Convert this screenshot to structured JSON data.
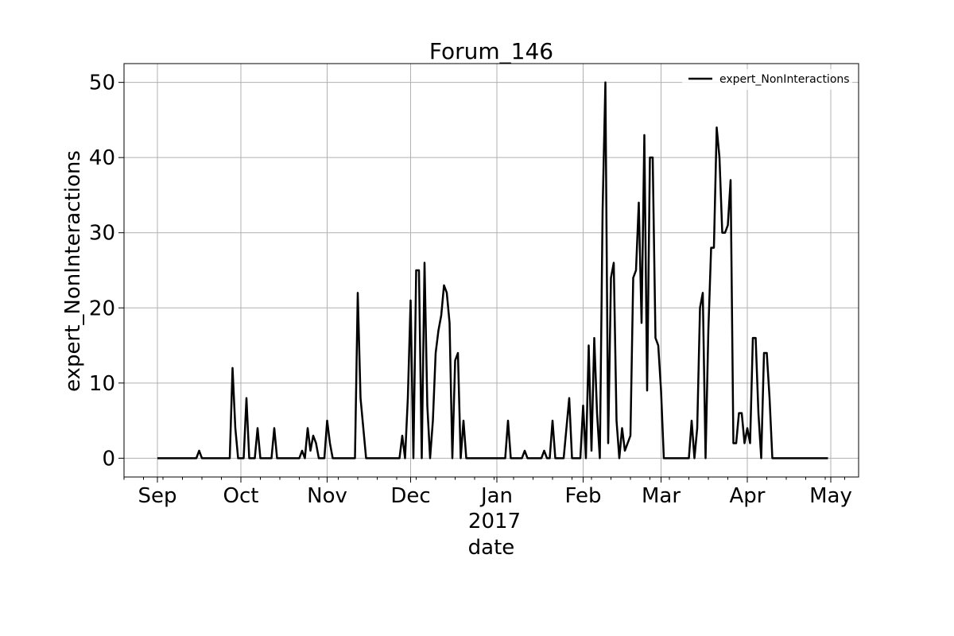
{
  "chart_data": {
    "type": "line",
    "title": "Forum_146",
    "xlabel": "date",
    "ylabel": "expert_NonInteractions",
    "x_tick_labels": [
      "Sep",
      "Oct",
      "Nov",
      "Dec",
      "Jan",
      "Feb",
      "Mar",
      "Apr",
      "May"
    ],
    "x_tick_dates": [
      "2016-09-01",
      "2016-10-01",
      "2016-11-01",
      "2016-12-01",
      "2017-01-01",
      "2017-02-01",
      "2017-03-01",
      "2017-04-01",
      "2017-05-01"
    ],
    "x_year_label": "2017",
    "xlim": [
      "2016-08-20",
      "2017-05-11"
    ],
    "y_ticks": [
      0,
      10,
      20,
      30,
      40,
      50
    ],
    "ylim": [
      -2.5,
      52.5
    ],
    "grid": true,
    "legend_position": "top-right",
    "series": [
      {
        "name": "expert_NonInteractions",
        "color": "#000000",
        "points": [
          [
            "2016-09-01",
            0
          ],
          [
            "2016-09-15",
            0
          ],
          [
            "2016-09-16",
            1
          ],
          [
            "2016-09-17",
            0
          ],
          [
            "2016-09-27",
            0
          ],
          [
            "2016-09-28",
            12
          ],
          [
            "2016-09-29",
            4
          ],
          [
            "2016-09-30",
            0
          ],
          [
            "2016-10-02",
            0
          ],
          [
            "2016-10-03",
            8
          ],
          [
            "2016-10-04",
            0
          ],
          [
            "2016-10-06",
            0
          ],
          [
            "2016-10-07",
            4
          ],
          [
            "2016-10-08",
            0
          ],
          [
            "2016-10-12",
            0
          ],
          [
            "2016-10-13",
            4
          ],
          [
            "2016-10-14",
            0
          ],
          [
            "2016-10-22",
            0
          ],
          [
            "2016-10-23",
            1
          ],
          [
            "2016-10-24",
            0
          ],
          [
            "2016-10-25",
            4
          ],
          [
            "2016-10-26",
            1
          ],
          [
            "2016-10-27",
            3
          ],
          [
            "2016-10-28",
            2
          ],
          [
            "2016-10-29",
            0
          ],
          [
            "2016-10-31",
            0
          ],
          [
            "2016-11-01",
            5
          ],
          [
            "2016-11-02",
            2
          ],
          [
            "2016-11-03",
            0
          ],
          [
            "2016-11-11",
            0
          ],
          [
            "2016-11-12",
            22
          ],
          [
            "2016-11-13",
            8
          ],
          [
            "2016-11-15",
            0
          ],
          [
            "2016-11-27",
            0
          ],
          [
            "2016-11-28",
            3
          ],
          [
            "2016-11-29",
            0
          ],
          [
            "2016-11-30",
            8
          ],
          [
            "2016-12-01",
            21
          ],
          [
            "2016-12-02",
            0
          ],
          [
            "2016-12-03",
            25
          ],
          [
            "2016-12-04",
            25
          ],
          [
            "2016-12-05",
            0
          ],
          [
            "2016-12-06",
            26
          ],
          [
            "2016-12-07",
            7
          ],
          [
            "2016-12-08",
            0
          ],
          [
            "2016-12-09",
            5
          ],
          [
            "2016-12-10",
            14
          ],
          [
            "2016-12-11",
            17
          ],
          [
            "2016-12-12",
            19
          ],
          [
            "2016-12-13",
            23
          ],
          [
            "2016-12-14",
            22
          ],
          [
            "2016-12-15",
            18
          ],
          [
            "2016-12-16",
            0
          ],
          [
            "2016-12-17",
            13
          ],
          [
            "2016-12-18",
            14
          ],
          [
            "2016-12-19",
            0
          ],
          [
            "2016-12-20",
            5
          ],
          [
            "2016-12-21",
            0
          ],
          [
            "2017-01-04",
            0
          ],
          [
            "2017-01-05",
            5
          ],
          [
            "2017-01-06",
            0
          ],
          [
            "2017-01-10",
            0
          ],
          [
            "2017-01-11",
            1
          ],
          [
            "2017-01-12",
            0
          ],
          [
            "2017-01-17",
            0
          ],
          [
            "2017-01-18",
            1
          ],
          [
            "2017-01-19",
            0
          ],
          [
            "2017-01-20",
            0
          ],
          [
            "2017-01-21",
            5
          ],
          [
            "2017-01-22",
            0
          ],
          [
            "2017-01-25",
            0
          ],
          [
            "2017-01-27",
            8
          ],
          [
            "2017-01-28",
            0
          ],
          [
            "2017-01-31",
            0
          ],
          [
            "2017-02-01",
            7
          ],
          [
            "2017-02-02",
            0
          ],
          [
            "2017-02-03",
            15
          ],
          [
            "2017-02-04",
            1
          ],
          [
            "2017-02-05",
            16
          ],
          [
            "2017-02-06",
            6
          ],
          [
            "2017-02-07",
            0
          ],
          [
            "2017-02-08",
            33
          ],
          [
            "2017-02-09",
            50
          ],
          [
            "2017-02-10",
            2
          ],
          [
            "2017-02-11",
            24
          ],
          [
            "2017-02-12",
            26
          ],
          [
            "2017-02-13",
            5
          ],
          [
            "2017-02-14",
            0
          ],
          [
            "2017-02-15",
            4
          ],
          [
            "2017-02-16",
            1
          ],
          [
            "2017-02-18",
            3
          ],
          [
            "2017-02-19",
            24
          ],
          [
            "2017-02-20",
            25
          ],
          [
            "2017-02-21",
            34
          ],
          [
            "2017-02-22",
            18
          ],
          [
            "2017-02-23",
            43
          ],
          [
            "2017-02-24",
            9
          ],
          [
            "2017-02-25",
            40
          ],
          [
            "2017-02-26",
            40
          ],
          [
            "2017-02-27",
            16
          ],
          [
            "2017-02-28",
            15
          ],
          [
            "2017-03-01",
            9
          ],
          [
            "2017-03-02",
            0
          ],
          [
            "2017-03-11",
            0
          ],
          [
            "2017-03-12",
            5
          ],
          [
            "2017-03-13",
            0
          ],
          [
            "2017-03-14",
            4
          ],
          [
            "2017-03-15",
            20
          ],
          [
            "2017-03-16",
            22
          ],
          [
            "2017-03-17",
            0
          ],
          [
            "2017-03-18",
            17
          ],
          [
            "2017-03-19",
            28
          ],
          [
            "2017-03-20",
            28
          ],
          [
            "2017-03-21",
            44
          ],
          [
            "2017-03-22",
            40
          ],
          [
            "2017-03-23",
            30
          ],
          [
            "2017-03-24",
            30
          ],
          [
            "2017-03-25",
            31
          ],
          [
            "2017-03-26",
            37
          ],
          [
            "2017-03-27",
            2
          ],
          [
            "2017-03-28",
            2
          ],
          [
            "2017-03-29",
            6
          ],
          [
            "2017-03-30",
            6
          ],
          [
            "2017-03-31",
            2
          ],
          [
            "2017-04-01",
            4
          ],
          [
            "2017-04-02",
            2
          ],
          [
            "2017-04-03",
            16
          ],
          [
            "2017-04-04",
            16
          ],
          [
            "2017-04-05",
            6
          ],
          [
            "2017-04-06",
            0
          ],
          [
            "2017-04-07",
            14
          ],
          [
            "2017-04-08",
            14
          ],
          [
            "2017-04-09",
            8
          ],
          [
            "2017-04-10",
            0
          ],
          [
            "2017-04-30",
            0
          ]
        ]
      }
    ]
  }
}
